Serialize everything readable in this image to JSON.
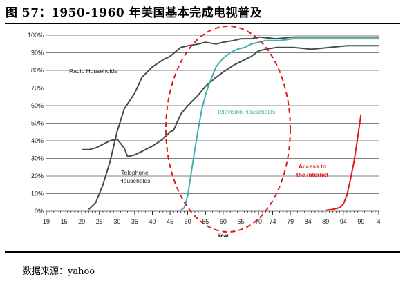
{
  "figure": {
    "title": "图 57：1950-1960 年美国基本完成电视普及",
    "source": "数据来源：yahoo"
  },
  "colors": {
    "radio": "#3f4f45",
    "telephone": "#3f4f45",
    "television": "#3fb0b0",
    "internet": "#e01818",
    "ellipse": "#e01818",
    "grid": "#000000",
    "axis_text": "#222222"
  },
  "chart_data": {
    "type": "line",
    "title": "",
    "xlabel": "Year",
    "ylabel": "",
    "ylim": [
      0,
      100
    ],
    "yticks": [
      0,
      10,
      20,
      30,
      40,
      50,
      60,
      70,
      80,
      90,
      100
    ],
    "ytick_labels": [
      "0%",
      "10%",
      "20%",
      "30%",
      "40%",
      "50%",
      "60%",
      "70%",
      "80%",
      "90%",
      "100%"
    ],
    "xlim": [
      1910,
      2004
    ],
    "xticks": [
      1910,
      1915,
      1920,
      1925,
      1930,
      1935,
      1940,
      1945,
      1950,
      1955,
      1960,
      1965,
      1970,
      1974,
      1979,
      1984,
      1989,
      1994,
      1999,
      2004
    ],
    "xtick_labels": [
      "19",
      "15",
      "20",
      "25",
      "30",
      "35",
      "40",
      "45",
      "50",
      "55",
      "60",
      "65",
      "70",
      "74",
      "79",
      "84",
      "89",
      "94",
      "99",
      "4"
    ],
    "grid": "horizontal",
    "series": [
      {
        "name": "Radio Households",
        "x": [
          1922,
          1924,
          1926,
          1928,
          1930,
          1932,
          1935,
          1937,
          1940,
          1943,
          1945,
          1948,
          1950,
          1953,
          1955,
          1958,
          1960,
          1963,
          1965,
          1968,
          1970,
          1975,
          1980,
          1985,
          1990,
          1995,
          2000,
          2004
        ],
        "values": [
          1,
          5,
          15,
          28,
          45,
          58,
          67,
          76,
          82,
          86,
          88,
          93,
          94,
          95,
          96,
          95,
          96,
          97,
          98,
          98,
          99,
          98,
          99,
          99,
          99,
          99,
          99,
          99
        ]
      },
      {
        "name": "Telephone Households",
        "x": [
          1920,
          1922,
          1924,
          1926,
          1928,
          1930,
          1932,
          1933,
          1935,
          1938,
          1940,
          1943,
          1945,
          1946,
          1948,
          1950,
          1953,
          1955,
          1958,
          1960,
          1963,
          1965,
          1968,
          1970,
          1972,
          1975,
          1980,
          1985,
          1990,
          1995,
          2000,
          2004
        ],
        "values": [
          35,
          35,
          36,
          38,
          40,
          41,
          36,
          31,
          32,
          35,
          37,
          41,
          45,
          46,
          55,
          60,
          66,
          71,
          76,
          79,
          83,
          85,
          88,
          91,
          92,
          93,
          93,
          92,
          93,
          94,
          94,
          94
        ]
      },
      {
        "name": "Television Households",
        "x": [
          1948,
          1949,
          1950,
          1951,
          1952,
          1953,
          1954,
          1955,
          1956,
          1958,
          1960,
          1962,
          1964,
          1966,
          1968,
          1970,
          1972,
          1974,
          1976,
          1980,
          1985,
          1990,
          1995,
          2000,
          2004
        ],
        "values": [
          0.5,
          2,
          9,
          22,
          35,
          47,
          58,
          66,
          72,
          82,
          87,
          90,
          92,
          93,
          95,
          96,
          97,
          97,
          97,
          98,
          98,
          98,
          98,
          98,
          98
        ]
      },
      {
        "name": "Access to the Internet",
        "x": [
          1989,
          1991,
          1993,
          1994,
          1995,
          1996,
          1997,
          1998,
          1999
        ],
        "values": [
          0.5,
          1,
          2,
          4,
          9,
          18,
          28,
          41,
          55
        ]
      }
    ],
    "annotations": [
      {
        "id": "radio",
        "lines": [
          "Radio Households"
        ]
      },
      {
        "id": "telephone",
        "lines": [
          "Telephone",
          "Households"
        ]
      },
      {
        "id": "television",
        "lines": [
          "Television Households"
        ]
      },
      {
        "id": "internet",
        "lines": [
          "Access to",
          "the Internet"
        ]
      }
    ]
  }
}
